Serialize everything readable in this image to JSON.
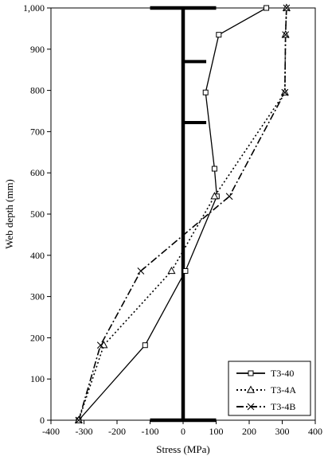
{
  "chart_data": {
    "type": "line",
    "title": "",
    "xlabel": "Stress (MPa)",
    "ylabel": "Web depth (mm)",
    "xlim": [
      -400,
      400
    ],
    "ylim": [
      0,
      1000
    ],
    "xticks": [
      -400,
      -300,
      -200,
      -100,
      0,
      100,
      200,
      300,
      400
    ],
    "xtick_labels": [
      "-400",
      "-300",
      "-200",
      "-100",
      "0",
      "100",
      "200",
      "300",
      "400"
    ],
    "yticks": [
      0,
      100,
      200,
      300,
      400,
      500,
      600,
      700,
      800,
      900,
      1000
    ],
    "ytick_labels": [
      "0",
      "100",
      "200",
      "300",
      "400",
      "500",
      "600",
      "700",
      "800",
      "900",
      "1,000"
    ],
    "grid": false,
    "legend_position": "bottom-right",
    "series": [
      {
        "name": "T3-40",
        "line_style": "solid",
        "marker": "square",
        "color": "#000000",
        "x": [
          -316,
          -115,
          7,
          102,
          95,
          68,
          108,
          252
        ],
        "y": [
          0,
          182,
          362,
          543,
          610,
          795,
          935,
          1000
        ]
      },
      {
        "name": "T3-4A",
        "line_style": "dotted",
        "marker": "triangle",
        "color": "#000000",
        "x": [
          -316,
          -240,
          -35,
          95,
          308,
          310,
          313
        ],
        "y": [
          0,
          182,
          362,
          543,
          795,
          935,
          1000
        ]
      },
      {
        "name": "T3-4B",
        "line_style": "dashdot",
        "marker": "x",
        "color": "#000000",
        "x": [
          -316,
          -250,
          -128,
          140,
          308,
          310,
          313
        ],
        "y": [
          0,
          182,
          362,
          543,
          795,
          935,
          1000
        ]
      }
    ],
    "annotations": {
      "web_x": 0,
      "flange_halfwidth": 100,
      "stiffener_depths": [
        722,
        870
      ],
      "stiffener_length": 70,
      "color": "#000000"
    }
  }
}
